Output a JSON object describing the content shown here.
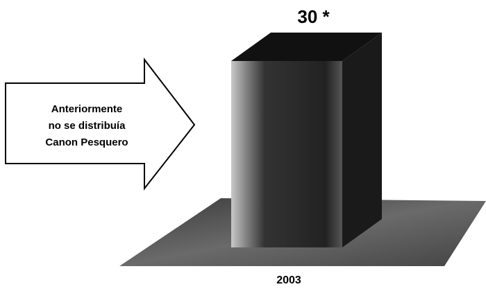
{
  "chart_data": {
    "type": "bar3d",
    "categories": [
      "2003"
    ],
    "values": [
      30
    ],
    "value_labels": [
      "30 *"
    ],
    "color": "#262626",
    "annotation": [
      "Anteriormente",
      "no se distribuía",
      "Canon Pesquero"
    ]
  }
}
